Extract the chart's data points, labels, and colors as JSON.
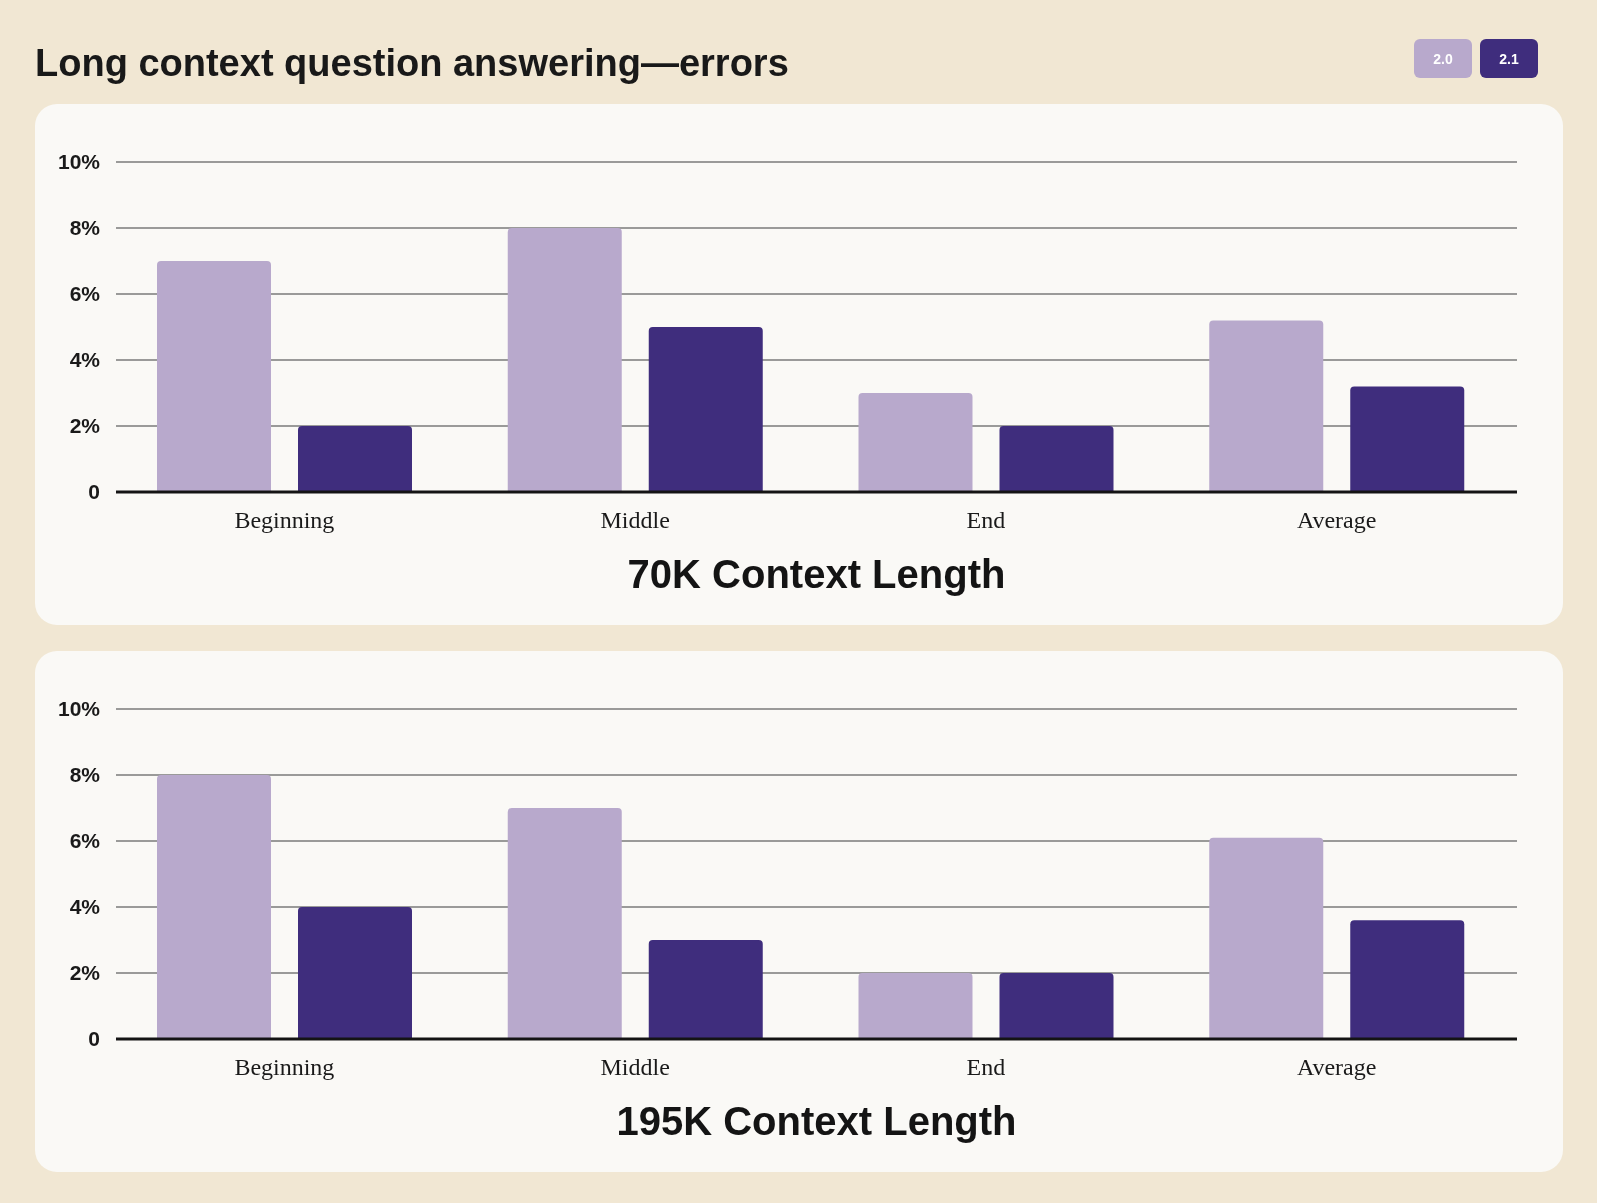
{
  "chart_data": [
    {
      "type": "bar",
      "title": "Long context question answering—errors",
      "xlabel": "70K Context Length",
      "categories": [
        "Beginning",
        "Middle",
        "End",
        "Average"
      ],
      "series": [
        {
          "name": "2.0",
          "color": "#b8a9cc",
          "values": [
            7,
            8,
            3,
            5.2
          ]
        },
        {
          "name": "2.1",
          "color": "#3f2d7d",
          "values": [
            2,
            5,
            2,
            3.2
          ]
        }
      ],
      "ylim": [
        0,
        10
      ],
      "yticks": [
        0,
        {
          "value": 2,
          "label": "2%"
        },
        {
          "value": 4,
          "label": "4%"
        },
        {
          "value": 6,
          "label": "6%"
        },
        {
          "value": 8,
          "label": "8%"
        },
        {
          "value": 10,
          "label": "10%"
        }
      ],
      "grid": "y",
      "legend": "top right"
    },
    {
      "type": "bar",
      "xlabel": "195K Context Length",
      "categories": [
        "Beginning",
        "Middle",
        "End",
        "Average"
      ],
      "series": [
        {
          "color": "#b8a9cc",
          "values": [
            8,
            7,
            2,
            6.1
          ]
        },
        {
          "color": "#3f2d7d",
          "values": [
            4,
            3,
            2,
            3.6
          ]
        }
      ],
      "ylim": [
        0,
        10
      ],
      "yticks": [
        0,
        {
          "value": 2,
          "label": "2%"
        },
        {
          "value": 4,
          "label": "4%"
        },
        {
          "value": 6,
          "label": "6%"
        },
        {
          "value": 8,
          "label": "8%"
        },
        {
          "value": 10,
          "label": "10%"
        }
      ],
      "grid": "y"
    }
  ]
}
